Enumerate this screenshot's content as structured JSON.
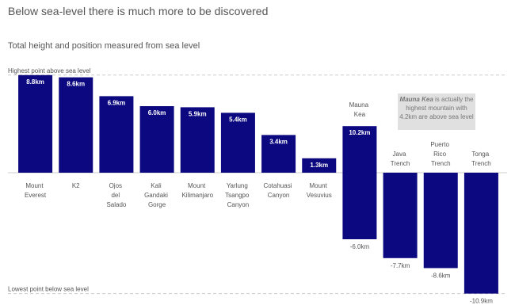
{
  "chart_data": {
    "type": "range-bar",
    "title": "Below sea-level there is much more to be discovered",
    "subtitle": "Total height and position measured from sea level",
    "categories": [
      "Mount Everest",
      "K2",
      "Ojos del Salado",
      "Kali Gandaki Gorge",
      "Mount Kilimanjaro",
      "Yarlung Tsangpo Canyon",
      "Cotahuasi Canyon",
      "Mount Vesuvius",
      "Mauna Kea",
      "Java Trench",
      "Puerto Rico Trench",
      "Tonga Trench"
    ],
    "values_above": [
      8.8,
      8.6,
      6.9,
      6.0,
      5.9,
      5.4,
      3.4,
      1.3,
      4.2,
      null,
      null,
      null
    ],
    "value_labels_above": [
      "8.8km",
      "8.6km",
      "6.9km",
      "6.0km",
      "5.9km",
      "5.4km",
      "3.4km",
      "1.3km",
      null,
      null,
      null,
      null
    ],
    "totals": [
      null,
      null,
      null,
      null,
      null,
      null,
      null,
      null,
      10.2,
      null,
      null,
      null
    ],
    "total_labels": [
      null,
      null,
      null,
      null,
      null,
      null,
      null,
      null,
      "10.2km",
      null,
      null,
      null
    ],
    "values_below": [
      null,
      null,
      null,
      null,
      null,
      null,
      null,
      null,
      -6.0,
      -7.7,
      -8.6,
      -10.9
    ],
    "value_labels_below": [
      null,
      null,
      null,
      null,
      null,
      null,
      null,
      null,
      "-6.0km",
      "-7.7km",
      "-8.6km",
      "-10.9km"
    ],
    "color": "#0b0880",
    "ylim": [
      -11.5,
      9.5
    ],
    "reference_lines": [
      {
        "value": 8.8,
        "label": "Highest point above sea level"
      },
      {
        "value": -10.9,
        "label": "Lowest point below sea level"
      }
    ],
    "annotation_emphasis": "Mauna Kea",
    "annotation": "is actually the highest mountain with 4.2km are above sea level"
  }
}
